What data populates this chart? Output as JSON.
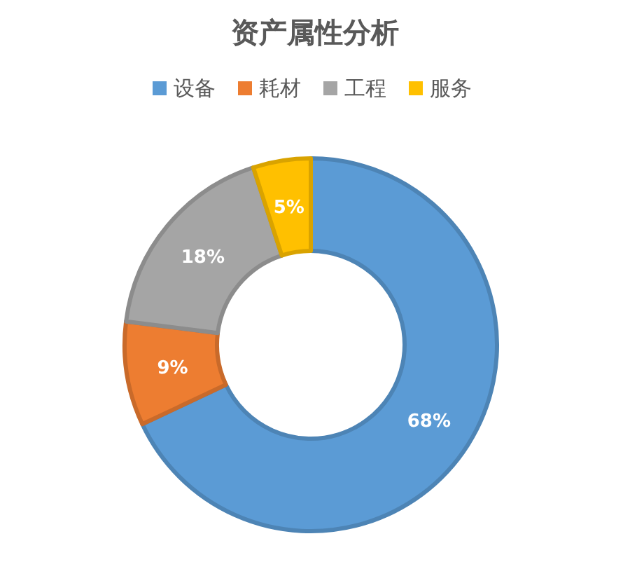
{
  "chart_data": {
    "type": "donut",
    "title": "资产属性分析",
    "categories": [
      "设备",
      "耗材",
      "工程",
      "服务"
    ],
    "values": [
      68,
      9,
      18,
      5
    ],
    "colors": [
      "#5b9bd5",
      "#ed7d31",
      "#a5a5a5",
      "#ffc000"
    ],
    "value_labels": [
      "68%",
      "9%",
      "18%",
      "5%"
    ],
    "legend": "top"
  }
}
